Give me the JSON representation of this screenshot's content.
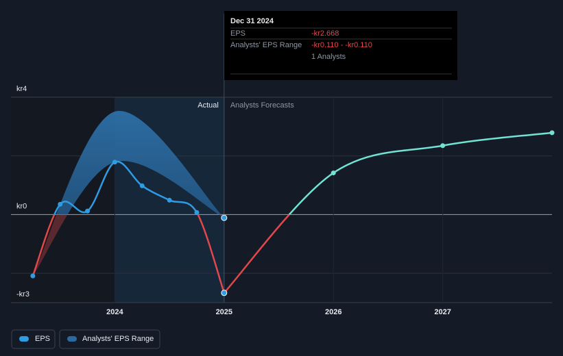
{
  "chart_data": {
    "type": "line",
    "xlim": [
      2023.05,
      2028
    ],
    "xticks": [
      2024,
      2025,
      2026,
      2027
    ],
    "ylim": [
      -3,
      4
    ],
    "yticks": [
      {
        "value": -3,
        "label": "-kr3"
      },
      {
        "value": 0,
        "label": "kr0"
      },
      {
        "value": 4,
        "label": "kr4"
      }
    ],
    "minor_gridlines": [
      -2,
      2
    ],
    "grid": true,
    "negative_color": "#e0484a",
    "series": [
      {
        "name": "EPS",
        "color": "#2f9be3",
        "x": [
          2023.25,
          2023.5,
          2023.75,
          2024,
          2024.25,
          2024.5,
          2024.75,
          2025
        ],
        "values": [
          -2.09,
          0.35,
          0.12,
          1.79,
          0.98,
          0.49,
          0.07,
          -2.668
        ]
      }
    ],
    "forecast": {
      "color": "#72e3d2",
      "x": [
        2025,
        2026,
        2027,
        2028
      ],
      "values": [
        -2.668,
        1.42,
        2.35,
        2.79
      ]
    },
    "range": {
      "name": "Analysts' EPS Range",
      "color": "#2a6aa0",
      "x": [
        2023.25,
        2024,
        2025
      ],
      "low": [
        -2.09,
        1.79,
        -0.11
      ],
      "high": [
        -2.09,
        3.51,
        -0.11
      ]
    },
    "section_labels": {
      "actual": "Actual",
      "forecast": "Analysts Forecasts"
    },
    "tooltip": {
      "date": "Dec 31 2024",
      "rows": [
        {
          "label": "EPS",
          "value": "-kr2.668"
        },
        {
          "label": "Analysts' EPS Range",
          "value": "-kr0.110 - -kr0.110"
        }
      ],
      "note": "1 Analysts"
    }
  }
}
